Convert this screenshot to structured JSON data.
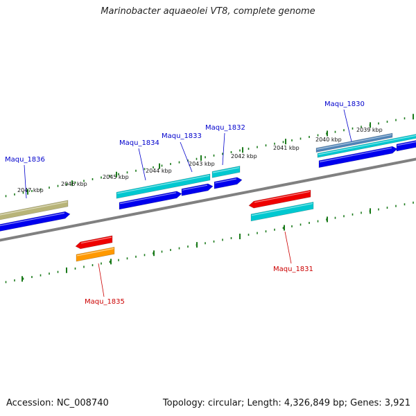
{
  "title": "Marinobacter aquaeolei VT8, complete genome",
  "footer": {
    "accession": "Accession: NC_008740",
    "summary": "Topology: circular; Length: 4,326,849 bp; Genes: 3,921"
  },
  "colors": {
    "backbone": "#808080",
    "ticks": "#1a7a1a",
    "label_plus": "#0000cc",
    "label_minus": "#cc0000",
    "blue": "#0000ee",
    "cyan": "#00c8d0",
    "red": "#ee0000",
    "orange": "#ff9900",
    "olive": "#b8b478",
    "steel": "#4f84b8"
  },
  "scale": {
    "kbp_labels": [
      "2047 kbp",
      "2046 kbp",
      "2045 kbp",
      "2044 kbp",
      "2043 kbp",
      "2042 kbp",
      "2041 kbp",
      "2040 kbp",
      "2039 kbp"
    ]
  },
  "genes": [
    {
      "name": "Maqu_1836",
      "strand": "+"
    },
    {
      "name": "Maqu_1835",
      "strand": "-"
    },
    {
      "name": "Maqu_1834",
      "strand": "+"
    },
    {
      "name": "Maqu_1833",
      "strand": "+"
    },
    {
      "name": "Maqu_1832",
      "strand": "+"
    },
    {
      "name": "Maqu_1831",
      "strand": "-"
    },
    {
      "name": "Maqu_1830",
      "strand": "+"
    }
  ]
}
